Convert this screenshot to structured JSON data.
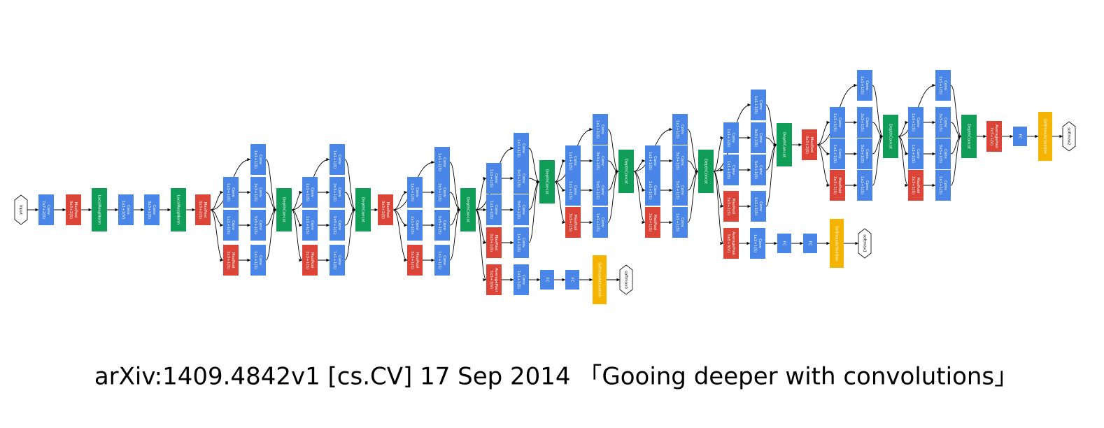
{
  "caption": "arXiv:1409.4842v1 [cs.CV] 17 Sep 2014 「Gooing deeper with convolutions」",
  "nodes": [
    {
      "lines": [
        "input"
      ],
      "color": "#ffffff",
      "shape": "hexagon"
    },
    {
      "lines": [
        "Conv",
        "7x7+2(S)"
      ],
      "color": "#4a86e8"
    },
    {
      "lines": [
        "MaxPool",
        "3x3+2(S)"
      ],
      "color": "#db4437"
    },
    {
      "lines": [
        "LocalRespNorm"
      ],
      "color": "#0f9d58"
    },
    {
      "lines": [
        "Conv",
        "1x1+1(V)"
      ],
      "color": "#4a86e8"
    },
    {
      "lines": [
        "Conv",
        "3x3+1(S)"
      ],
      "color": "#4a86e8"
    },
    {
      "lines": [
        "LocalRespNorm"
      ],
      "color": "#0f9d58"
    },
    {
      "lines": [
        "MaxPool",
        "3x3+2(S)"
      ],
      "color": "#db4437"
    },
    {
      "lines": [
        "Conv",
        "1x1+1(S)"
      ],
      "color": "#4a86e8"
    },
    {
      "lines": [
        "Conv",
        "1x1+1(S)"
      ],
      "color": "#4a86e8"
    },
    {
      "lines": [
        "Conv",
        "3x3+1(S)"
      ],
      "color": "#4a86e8"
    },
    {
      "lines": [
        "Conv",
        "1x1+1(S)"
      ],
      "color": "#4a86e8"
    },
    {
      "lines": [
        "Conv",
        "5x5+1(S)"
      ],
      "color": "#4a86e8"
    },
    {
      "lines": [
        "MaxPool",
        "3x3+1(S)"
      ],
      "color": "#db4437"
    },
    {
      "lines": [
        "Conv",
        "1x1+1(S)"
      ],
      "color": "#4a86e8"
    },
    {
      "lines": [
        "DepthConcat"
      ],
      "color": "#0f9d58"
    },
    {
      "lines": [
        "Conv",
        "1x1+1(S)"
      ],
      "color": "#4a86e8"
    },
    {
      "lines": [
        "Conv",
        "1x1+1(S)"
      ],
      "color": "#4a86e8"
    },
    {
      "lines": [
        "Conv",
        "3x3+1(S)"
      ],
      "color": "#4a86e8"
    },
    {
      "lines": [
        "Conv",
        "1x1+1(S)"
      ],
      "color": "#4a86e8"
    },
    {
      "lines": [
        "Conv",
        "5x5+1(S)"
      ],
      "color": "#4a86e8"
    },
    {
      "lines": [
        "MaxPool",
        "3x3+1(S)"
      ],
      "color": "#db4437"
    },
    {
      "lines": [
        "Conv",
        "1x1+1(S)"
      ],
      "color": "#4a86e8"
    },
    {
      "lines": [
        "DepthConcat"
      ],
      "color": "#0f9d58"
    },
    {
      "lines": [
        "MaxPool",
        "3x3+2(S)"
      ],
      "color": "#db4437"
    },
    {
      "lines": [
        "Conv",
        "1x1+1(S)"
      ],
      "color": "#4a86e8"
    },
    {
      "lines": [
        "Conv",
        "1x1+1(S)"
      ],
      "color": "#4a86e8"
    },
    {
      "lines": [
        "Conv",
        "3x3+1(S)"
      ],
      "color": "#4a86e8"
    },
    {
      "lines": [
        "Conv",
        "1x1+1(S)"
      ],
      "color": "#4a86e8"
    },
    {
      "lines": [
        "Conv",
        "5x5+1(S)"
      ],
      "color": "#4a86e8"
    },
    {
      "lines": [
        "MaxPool",
        "3x3+1(S)"
      ],
      "color": "#db4437"
    },
    {
      "lines": [
        "Conv",
        "1x1+1(S)"
      ],
      "color": "#4a86e8"
    },
    {
      "lines": [
        "DepthConcat"
      ],
      "color": "#0f9d58"
    },
    {
      "lines": [
        "Conv",
        "1x1+1(S)"
      ],
      "color": "#4a86e8"
    },
    {
      "lines": [
        "Conv",
        "1x1+1(S)"
      ],
      "color": "#4a86e8"
    },
    {
      "lines": [
        "Conv",
        "3x3+1(S)"
      ],
      "color": "#4a86e8"
    },
    {
      "lines": [
        "Conv",
        "1x1+1(S)"
      ],
      "color": "#4a86e8"
    },
    {
      "lines": [
        "Conv",
        "5x5+1(S)"
      ],
      "color": "#4a86e8"
    },
    {
      "lines": [
        "MaxPool",
        "3x3+1(S)"
      ],
      "color": "#db4437"
    },
    {
      "lines": [
        "Conv",
        "1x1+1(S)"
      ],
      "color": "#4a86e8"
    },
    {
      "lines": [
        "DepthConcat"
      ],
      "color": "#0f9d58"
    },
    {
      "lines": [
        "AveragePool",
        "5x5+3(V)"
      ],
      "color": "#db4437"
    },
    {
      "lines": [
        "Conv",
        "1x1+1(S)"
      ],
      "color": "#4a86e8"
    },
    {
      "lines": [
        "FC"
      ],
      "color": "#4a86e8"
    },
    {
      "lines": [
        "FC"
      ],
      "color": "#4a86e8"
    },
    {
      "lines": [
        "SoftmaxActivation"
      ],
      "color": "#f4b400"
    },
    {
      "lines": [
        "softmax0"
      ],
      "color": "#ffffff",
      "shape": "hexagon"
    },
    {
      "lines": [
        "Conv",
        "1x1+1(S)"
      ],
      "color": "#4a86e8"
    },
    {
      "lines": [
        "Conv",
        "1x1+1(S)"
      ],
      "color": "#4a86e8"
    },
    {
      "lines": [
        "Conv",
        "3x3+1(S)"
      ],
      "color": "#4a86e8"
    },
    {
      "lines": [
        "Conv",
        "1x1+1(S)"
      ],
      "color": "#4a86e8"
    },
    {
      "lines": [
        "Conv",
        "5x5+1(S)"
      ],
      "color": "#4a86e8"
    },
    {
      "lines": [
        "MaxPool",
        "3x3+1(S)"
      ],
      "color": "#db4437"
    },
    {
      "lines": [
        "Conv",
        "1x1+1(S)"
      ],
      "color": "#4a86e8"
    },
    {
      "lines": [
        "DepthConcat"
      ],
      "color": "#0f9d58"
    },
    {
      "lines": [
        "Conv",
        "1x1+1(S)"
      ],
      "color": "#4a86e8"
    },
    {
      "lines": [
        "Conv",
        "1x1+1(S)"
      ],
      "color": "#4a86e8"
    },
    {
      "lines": [
        "Conv",
        "3x3+1(S)"
      ],
      "color": "#4a86e8"
    },
    {
      "lines": [
        "Conv",
        "1x1+1(S)"
      ],
      "color": "#4a86e8"
    },
    {
      "lines": [
        "Conv",
        "5x5+1(S)"
      ],
      "color": "#4a86e8"
    },
    {
      "lines": [
        "MaxPool",
        "3x3+1(S)"
      ],
      "color": "#db4437"
    },
    {
      "lines": [
        "Conv",
        "1x1+1(S)"
      ],
      "color": "#4a86e8"
    },
    {
      "lines": [
        "DepthConcat"
      ],
      "color": "#0f9d58"
    },
    {
      "lines": [
        "AveragePool",
        "5x5+3(V)"
      ],
      "color": "#db4437"
    },
    {
      "lines": [
        "Conv",
        "1x1+1(S)"
      ],
      "color": "#4a86e8"
    },
    {
      "lines": [
        "FC"
      ],
      "color": "#4a86e8"
    },
    {
      "lines": [
        "FC"
      ],
      "color": "#4a86e8"
    },
    {
      "lines": [
        "SoftmaxActivation"
      ],
      "color": "#f4b400"
    },
    {
      "lines": [
        "softmax1"
      ],
      "color": "#ffffff",
      "shape": "hexagon"
    },
    {
      "lines": [
        "Conv",
        "1x1+1(S)"
      ],
      "color": "#4a86e8"
    },
    {
      "lines": [
        "Conv",
        "1x1+1(S)"
      ],
      "color": "#4a86e8"
    },
    {
      "lines": [
        "Conv",
        "3x3+1(S)"
      ],
      "color": "#4a86e8"
    },
    {
      "lines": [
        "Conv",
        "1x1+1(S)"
      ],
      "color": "#4a86e8"
    },
    {
      "lines": [
        "Conv",
        "5x5+1(S)"
      ],
      "color": "#4a86e8"
    },
    {
      "lines": [
        "MaxPool",
        "3x3+1(S)"
      ],
      "color": "#db4437"
    },
    {
      "lines": [
        "Conv",
        "1x1+1(S)"
      ],
      "color": "#4a86e8"
    },
    {
      "lines": [
        "DepthConcat"
      ],
      "color": "#0f9d58"
    },
    {
      "lines": [
        "MaxPool",
        "3x3+2(S)"
      ],
      "color": "#db4437"
    },
    {
      "lines": [
        "Conv",
        "1x1+1(S)"
      ],
      "color": "#4a86e8"
    },
    {
      "lines": [
        "Conv",
        "1x1+1(S)"
      ],
      "color": "#4a86e8"
    },
    {
      "lines": [
        "Conv",
        "3x3+1(S)"
      ],
      "color": "#4a86e8"
    },
    {
      "lines": [
        "Conv",
        "1x1+1(S)"
      ],
      "color": "#4a86e8"
    },
    {
      "lines": [
        "Conv",
        "5x5+1(S)"
      ],
      "color": "#4a86e8"
    },
    {
      "lines": [
        "MaxPool",
        "3x3+1(S)"
      ],
      "color": "#db4437"
    },
    {
      "lines": [
        "Conv",
        "1x1+1(S)"
      ],
      "color": "#4a86e8"
    },
    {
      "lines": [
        "DepthConcat"
      ],
      "color": "#0f9d58"
    },
    {
      "lines": [
        "Conv",
        "1x1+1(S)"
      ],
      "color": "#4a86e8"
    },
    {
      "lines": [
        "Conv",
        "1x1+1(S)"
      ],
      "color": "#4a86e8"
    },
    {
      "lines": [
        "Conv",
        "3x3+1(S)"
      ],
      "color": "#4a86e8"
    },
    {
      "lines": [
        "Conv",
        "1x1+1(S)"
      ],
      "color": "#4a86e8"
    },
    {
      "lines": [
        "Conv",
        "5x5+1(S)"
      ],
      "color": "#4a86e8"
    },
    {
      "lines": [
        "MaxPool",
        "3x3+1(S)"
      ],
      "color": "#db4437"
    },
    {
      "lines": [
        "Conv",
        "1x1+1(S)"
      ],
      "color": "#4a86e8"
    },
    {
      "lines": [
        "DepthConcat"
      ],
      "color": "#0f9d58"
    },
    {
      "lines": [
        "AveragePool",
        "7x7+1(V)"
      ],
      "color": "#db4437"
    },
    {
      "lines": [
        "FC"
      ],
      "color": "#4a86e8"
    },
    {
      "lines": [
        "SoftmaxActivation"
      ],
      "color": "#f4b400"
    },
    {
      "lines": [
        "softmax2"
      ],
      "color": "#ffffff",
      "shape": "hexagon"
    }
  ]
}
